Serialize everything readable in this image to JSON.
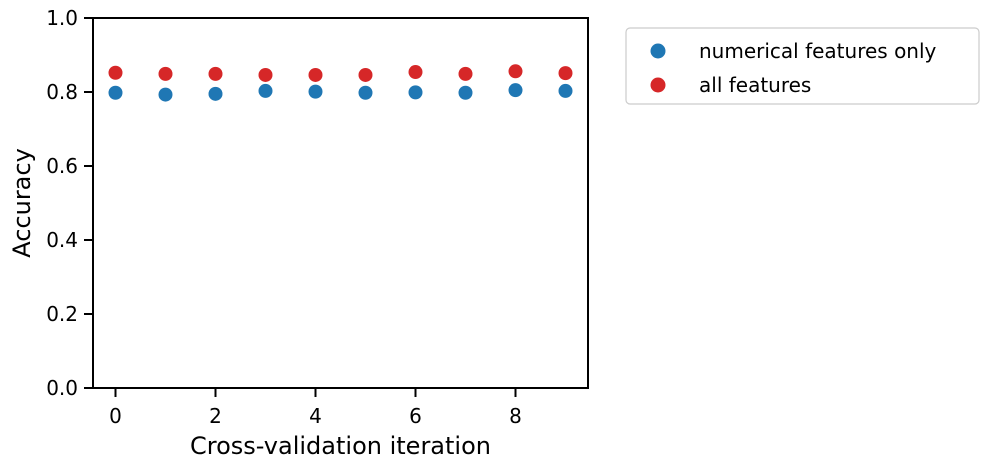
{
  "chart_data": {
    "type": "scatter",
    "title": "",
    "xlabel": "Cross-validation iteration",
    "ylabel": "Accuracy",
    "xlim": [
      -0.45,
      9.45
    ],
    "ylim": [
      0,
      1
    ],
    "xticks": [
      0,
      2,
      4,
      6,
      8
    ],
    "xtick_labels": [
      "0",
      "2",
      "4",
      "6",
      "8"
    ],
    "yticks": [
      0,
      0.2,
      0.4,
      0.6,
      0.8,
      1.0
    ],
    "ytick_labels": [
      "0.0",
      "0.2",
      "0.4",
      "0.6",
      "0.8",
      "1.0"
    ],
    "grid": false,
    "legend_position": "outside-upper-right",
    "series": [
      {
        "name": "numerical features only",
        "color": "#1f77b4",
        "x": [
          0,
          1,
          2,
          3,
          4,
          5,
          6,
          7,
          8,
          9
        ],
        "y": [
          0.798,
          0.793,
          0.795,
          0.803,
          0.801,
          0.798,
          0.799,
          0.798,
          0.805,
          0.803
        ]
      },
      {
        "name": "all features",
        "color": "#d62728",
        "x": [
          0,
          1,
          2,
          3,
          4,
          5,
          6,
          7,
          8,
          9
        ],
        "y": [
          0.852,
          0.849,
          0.849,
          0.846,
          0.846,
          0.846,
          0.854,
          0.849,
          0.856,
          0.851
        ]
      }
    ]
  }
}
